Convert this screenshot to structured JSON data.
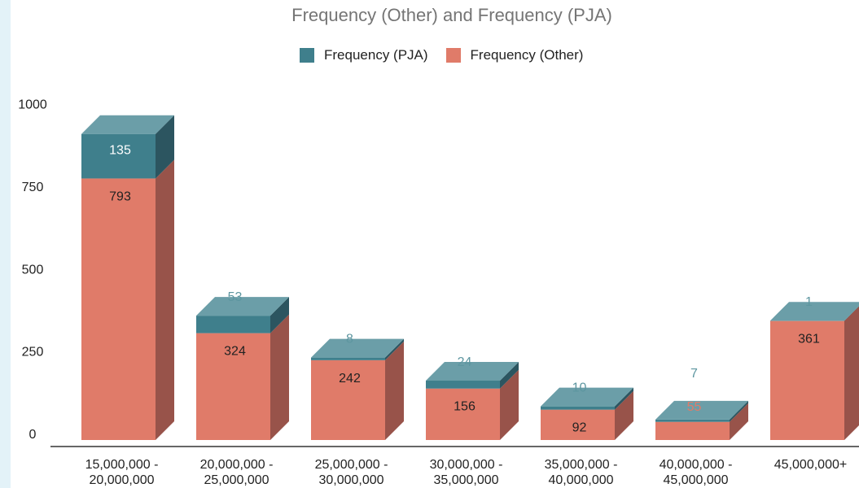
{
  "chart_data": {
    "type": "bar",
    "stacked": true,
    "three_d": true,
    "title": "Frequency (Other) and Frequency (PJA)",
    "xlabel": "",
    "ylabel": "",
    "ylim": [
      0,
      1000
    ],
    "yticks": [
      "0",
      "250",
      "500",
      "750",
      "1000"
    ],
    "categories": [
      [
        "15,000,000 -",
        "20,000,000"
      ],
      [
        "20,000,000 -",
        "25,000,000"
      ],
      [
        "25,000,000 -",
        "30,000,000"
      ],
      [
        "30,000,000 -",
        "35,000,000"
      ],
      [
        "35,000,000 -",
        "40,000,000"
      ],
      [
        "40,000,000 -",
        "45,000,000"
      ],
      [
        "45,000,000+"
      ]
    ],
    "series": [
      {
        "name": "Frequency (Other)",
        "color": "#e07b69",
        "side_color": "#98534a",
        "values": [
          793,
          324,
          242,
          156,
          92,
          55,
          361
        ]
      },
      {
        "name": "Frequency (PJA)",
        "color": "#3f7f8c",
        "side_color": "#2c5560",
        "values": [
          135,
          53,
          8,
          24,
          10,
          7,
          1
        ]
      }
    ],
    "legend": {
      "position": "top",
      "order": [
        "Frequency (PJA)",
        "Frequency (Other)"
      ]
    },
    "colors": {
      "top_face": "#6b9ea8",
      "axis_line": "#333333",
      "tick_text": "#222222",
      "label_dark": "#222222",
      "label_light": "#ffffff",
      "label_teal_out": "#5d96a0",
      "label_salmon_out": "#e07b69"
    }
  }
}
